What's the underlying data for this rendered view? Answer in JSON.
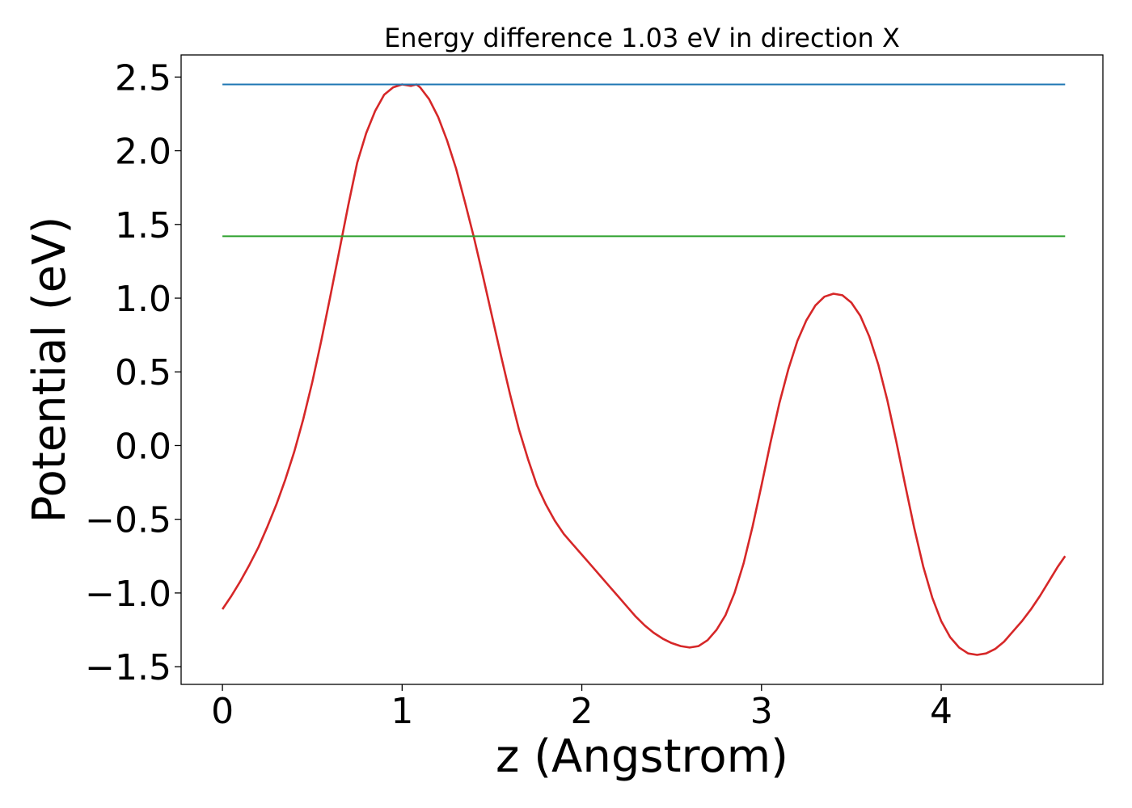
{
  "chart_data": {
    "type": "line",
    "title": "Energy difference 1.03 eV in direction X",
    "xlabel": "z (Angstrom)",
    "ylabel": "Potential (eV)",
    "xlim": [
      -0.23,
      4.9
    ],
    "ylim": [
      -1.62,
      2.65
    ],
    "xticks": [
      0,
      1,
      2,
      3,
      4
    ],
    "xtick_labels": [
      "0",
      "1",
      "2",
      "3",
      "4"
    ],
    "yticks": [
      -1.5,
      -1.0,
      -0.5,
      0.0,
      0.5,
      1.0,
      1.5,
      2.0,
      2.5
    ],
    "ytick_labels": [
      "−1.5",
      "−1.0",
      "−0.5",
      "0.0",
      "0.5",
      "1.0",
      "1.5",
      "2.0",
      "2.5"
    ],
    "grid": false,
    "series": [
      {
        "color": "#d62728",
        "style": "curve",
        "x": [
          0.0,
          0.05,
          0.1,
          0.15,
          0.2,
          0.25,
          0.3,
          0.35,
          0.4,
          0.45,
          0.5,
          0.55,
          0.6,
          0.65,
          0.7,
          0.75,
          0.8,
          0.85,
          0.9,
          0.95,
          1.0,
          1.05,
          1.08,
          1.1,
          1.15,
          1.2,
          1.25,
          1.3,
          1.35,
          1.4,
          1.45,
          1.5,
          1.55,
          1.6,
          1.65,
          1.7,
          1.75,
          1.8,
          1.85,
          1.9,
          1.95,
          2.0,
          2.05,
          2.1,
          2.15,
          2.2,
          2.25,
          2.3,
          2.35,
          2.4,
          2.45,
          2.5,
          2.55,
          2.6,
          2.65,
          2.7,
          2.75,
          2.8,
          2.85,
          2.9,
          2.95,
          3.0,
          3.05,
          3.1,
          3.15,
          3.2,
          3.25,
          3.3,
          3.35,
          3.4,
          3.45,
          3.5,
          3.55,
          3.6,
          3.65,
          3.7,
          3.75,
          3.8,
          3.85,
          3.9,
          3.95,
          4.0,
          4.05,
          4.1,
          4.15,
          4.2,
          4.25,
          4.3,
          4.35,
          4.4,
          4.45,
          4.5,
          4.55,
          4.6,
          4.65,
          4.69
        ],
        "y": [
          -1.11,
          -1.02,
          -0.92,
          -0.81,
          -0.69,
          -0.55,
          -0.4,
          -0.23,
          -0.04,
          0.18,
          0.43,
          0.71,
          1.01,
          1.32,
          1.63,
          1.92,
          2.12,
          2.27,
          2.38,
          2.43,
          2.45,
          2.44,
          2.45,
          2.43,
          2.35,
          2.23,
          2.07,
          1.88,
          1.65,
          1.41,
          1.15,
          0.88,
          0.61,
          0.35,
          0.11,
          -0.09,
          -0.27,
          -0.4,
          -0.51,
          -0.6,
          -0.67,
          -0.74,
          -0.81,
          -0.88,
          -0.95,
          -1.02,
          -1.09,
          -1.16,
          -1.22,
          -1.27,
          -1.31,
          -1.34,
          -1.36,
          -1.37,
          -1.36,
          -1.32,
          -1.25,
          -1.15,
          -1.0,
          -0.8,
          -0.55,
          -0.27,
          0.02,
          0.29,
          0.52,
          0.71,
          0.85,
          0.95,
          1.01,
          1.03,
          1.02,
          0.97,
          0.88,
          0.74,
          0.55,
          0.31,
          0.03,
          -0.27,
          -0.56,
          -0.82,
          -1.03,
          -1.19,
          -1.3,
          -1.37,
          -1.41,
          -1.42,
          -1.41,
          -1.38,
          -1.33,
          -1.26,
          -1.19,
          -1.11,
          -1.02,
          -0.92,
          -0.82,
          -0.75
        ]
      },
      {
        "color": "#1f77b4",
        "style": "hline",
        "x": [
          0.0,
          4.69
        ],
        "y": [
          2.45,
          2.45
        ]
      },
      {
        "color": "#2ca02c",
        "style": "hline",
        "x": [
          0.0,
          4.69
        ],
        "y": [
          1.42,
          1.42
        ]
      }
    ]
  }
}
